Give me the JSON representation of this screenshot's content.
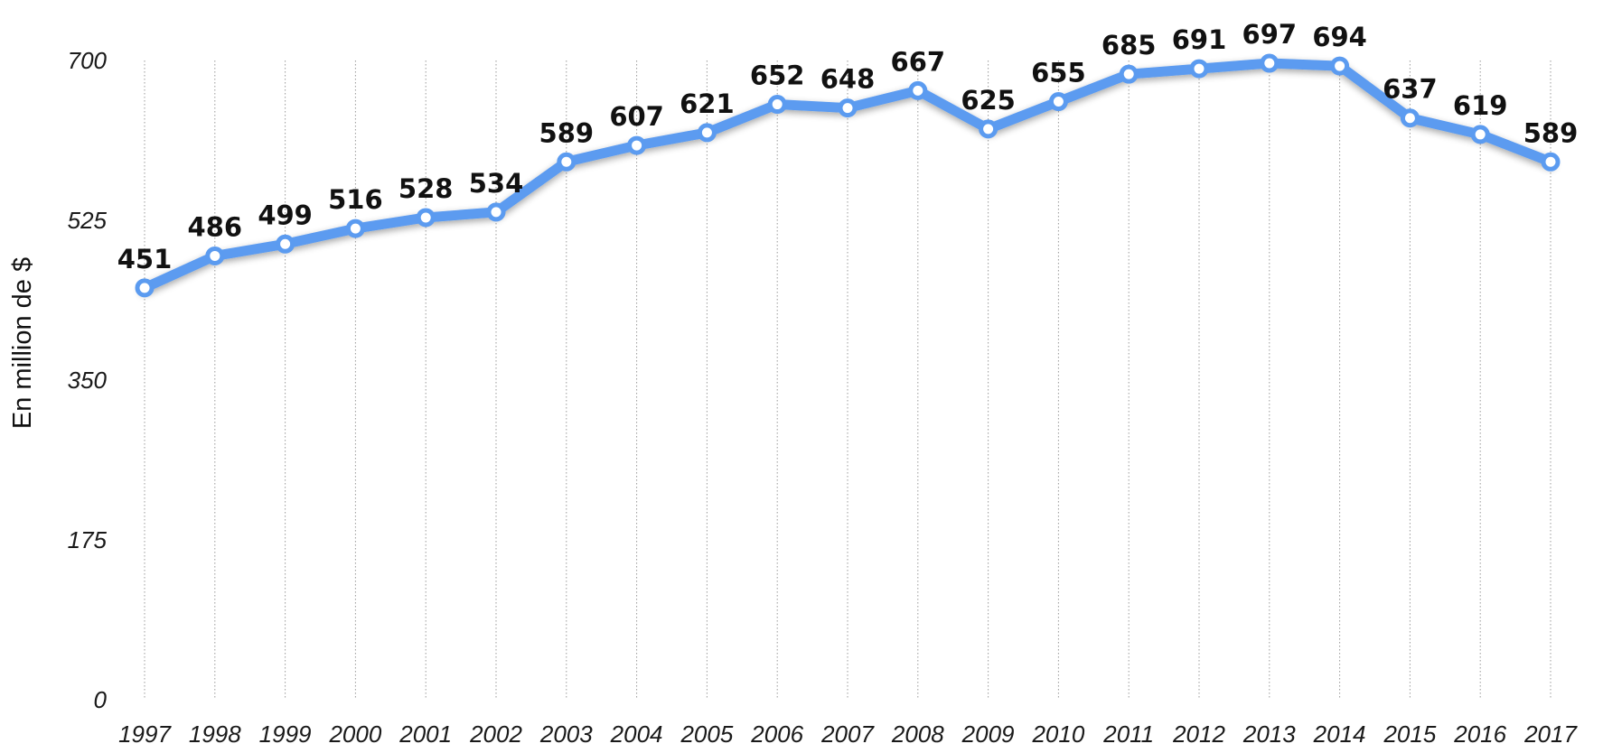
{
  "chart_data": {
    "type": "line",
    "title": "",
    "xlabel": "",
    "ylabel": "En million de $",
    "categories": [
      "1997",
      "1998",
      "1999",
      "2000",
      "2001",
      "2002",
      "2003",
      "2004",
      "2005",
      "2006",
      "2007",
      "2008",
      "2009",
      "2010",
      "2011",
      "2012",
      "2013",
      "2014",
      "2015",
      "2016",
      "2017"
    ],
    "series": [
      {
        "values": [
          451,
          486,
          499,
          516,
          528,
          534,
          589,
          607,
          621,
          652,
          648,
          667,
          625,
          655,
          685,
          691,
          697,
          694,
          637,
          619,
          589
        ],
        "color": "#5B9BF0"
      }
    ],
    "ylim": [
      0,
      700
    ],
    "yticks": [
      0,
      175,
      350,
      525,
      700
    ],
    "ytick_labels": [
      "0",
      "175",
      "350",
      "525",
      "700"
    ],
    "grid": "vertical dotted",
    "legend": "none",
    "data_labels": true
  }
}
